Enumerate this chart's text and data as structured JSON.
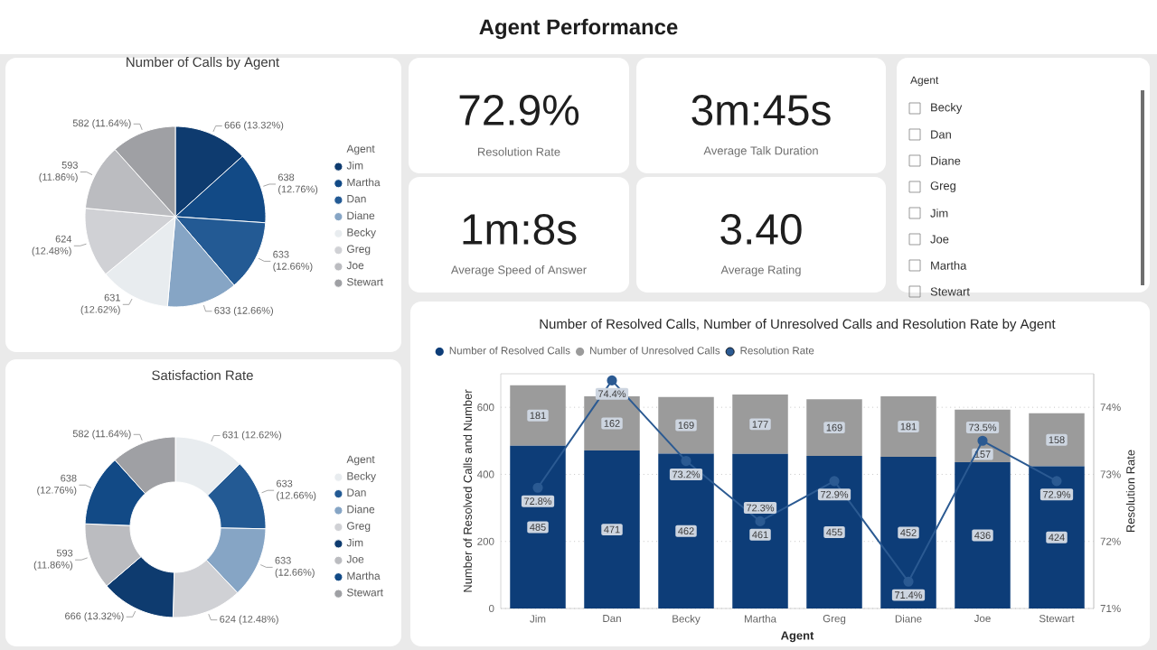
{
  "chart_data": [
    {
      "type": "other",
      "title": "Agent Performance"
    },
    {
      "type": "pie",
      "title": "Number of Calls by Agent",
      "legend_title": "Agent",
      "legend": "right",
      "categories": [
        "Jim",
        "Martha",
        "Dan",
        "Diane",
        "Becky",
        "Greg",
        "Joe",
        "Stewart"
      ],
      "values": [
        666,
        638,
        633,
        633,
        631,
        624,
        593,
        582
      ],
      "value_labels": [
        "666 (13.32%)",
        "638 (12.76%)",
        "633 (12.66%)",
        "633 (12.66%)",
        "631 (12.62%)",
        "624 (12.48%)",
        "593 (11.86%)",
        "582 (11.64%)"
      ],
      "colors": [
        "#0e3b6f",
        "#124a86",
        "#235a94",
        "#86a5c5",
        "#e8ecef",
        "#d0d1d5",
        "#bbbcc0",
        "#9fa0a4"
      ]
    },
    {
      "type": "donut",
      "title": "Satisfaction Rate",
      "legend_title": "Agent",
      "legend": "right",
      "categories": [
        "Becky",
        "Dan",
        "Diane",
        "Greg",
        "Jim",
        "Joe",
        "Martha",
        "Stewart"
      ],
      "values": [
        631,
        633,
        633,
        624,
        666,
        593,
        638,
        582
      ],
      "value_labels": [
        "631 (12.62%)",
        "633 (12.66%)",
        "633 (12.66%)",
        "624 (12.48%)",
        "666 (13.32%)",
        "593 (11.86%)",
        "638 (12.76%)",
        "582 (11.64%)"
      ],
      "colors": [
        "#e8ecef",
        "#235a94",
        "#86a5c5",
        "#d0d1d5",
        "#0e3b6f",
        "#bbbcc0",
        "#124a86",
        "#9fa0a4"
      ]
    },
    {
      "type": "other",
      "title": "72.9%",
      "subtitle": "Resolution Rate"
    },
    {
      "type": "other",
      "title": "3m:45s",
      "subtitle": "Average Talk Duration"
    },
    {
      "type": "other",
      "title": "1m:8s",
      "subtitle": "Average Speed of Answer"
    },
    {
      "type": "other",
      "title": "3.40",
      "subtitle": "Average Rating"
    },
    {
      "type": "other",
      "title": "Agent",
      "annotations": [
        "Becky",
        "Dan",
        "Diane",
        "Greg",
        "Jim",
        "Joe",
        "Martha",
        "Stewart"
      ]
    },
    {
      "type": "bar",
      "title": "Number of Resolved Calls, Number of Unresolved Calls and Resolution Rate by Agent",
      "xlabel": "Agent",
      "ylabel": "Number of Resolved Calls and Number",
      "y2label": "Resolution Rate",
      "categories": [
        "Jim",
        "Dan",
        "Becky",
        "Martha",
        "Greg",
        "Diane",
        "Joe",
        "Stewart"
      ],
      "stacked": true,
      "grid": "y",
      "legend": "top",
      "data_labels": true,
      "series": [
        {
          "name": "Number of Resolved Calls",
          "color": "#0d3d78",
          "values": [
            485,
            471,
            462,
            461,
            455,
            452,
            436,
            424
          ]
        },
        {
          "name": "Number of Unresolved Calls",
          "color": "#9b9b9b",
          "values": [
            181,
            162,
            169,
            177,
            169,
            181,
            157,
            158
          ]
        },
        {
          "name": "Resolution Rate",
          "type": "line",
          "axis": "y2",
          "marker": "circle",
          "color": "#2b5a92",
          "values": [
            72.8,
            74.4,
            73.2,
            72.3,
            72.9,
            71.4,
            73.5,
            72.9
          ],
          "value_labels": [
            "72.8%",
            "74.4%",
            "73.2%",
            "72.3%",
            "72.9%",
            "71.4%",
            "73.5%",
            "72.9%"
          ]
        }
      ],
      "ylim": [
        0,
        700
      ],
      "yticks": [
        0,
        200,
        400,
        600
      ],
      "y2lim": [
        71,
        74.5
      ],
      "y2ticks": [
        {
          "value": 71,
          "label": "71%"
        },
        {
          "value": 72,
          "label": "72%"
        },
        {
          "value": 73,
          "label": "73%"
        },
        {
          "value": 74,
          "label": "74%"
        }
      ]
    }
  ]
}
